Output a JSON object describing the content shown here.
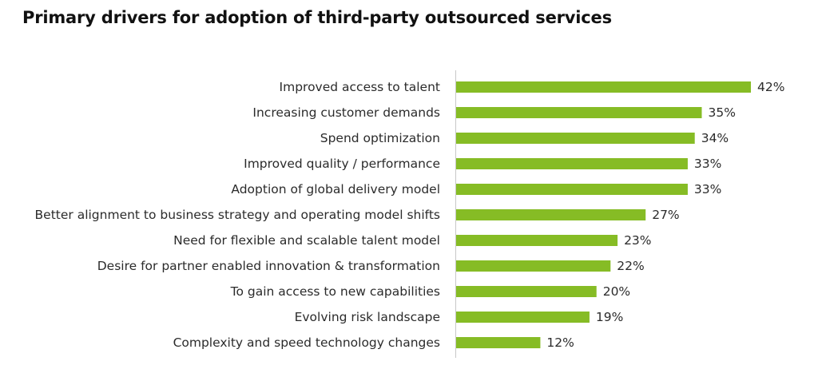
{
  "chart_data": {
    "type": "bar",
    "orientation": "horizontal",
    "title": "Primary drivers for adoption of third-party outsourced services",
    "xlabel": "",
    "ylabel": "",
    "value_suffix": "%",
    "xlim": [
      0,
      42
    ],
    "grid": false,
    "legend": "none",
    "bar_color": "#86bc25",
    "axis_color": "#c8c8c8",
    "categories": [
      "Improved access to talent",
      "Increasing customer demands",
      "Spend optimization",
      "Improved quality / performance",
      "Adoption of global delivery model",
      "Better alignment to business strategy and operating model shifts",
      "Need for flexible and scalable talent model",
      "Desire for partner enabled innovation & transformation",
      "To gain access to new capabilities",
      "Evolving risk landscape",
      "Complexity and speed technology changes"
    ],
    "values": [
      42,
      35,
      34,
      33,
      33,
      27,
      23,
      22,
      20,
      19,
      12
    ]
  }
}
